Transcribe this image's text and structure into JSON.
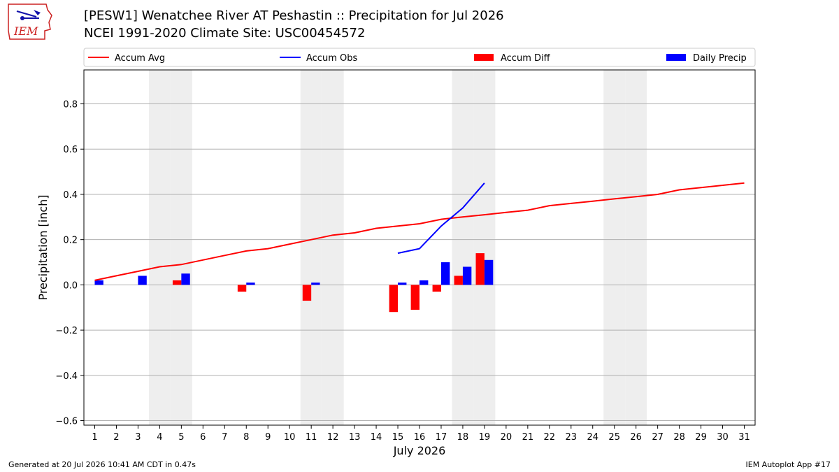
{
  "header": {
    "title_line1": "[PESW1] Wenatchee River  AT Peshastin :: Precipitation for Jul 2026",
    "title_line2": "NCEI 1991-2020 Climate Site: USC00454572",
    "logo_text": "IEM"
  },
  "footer": {
    "generated": "Generated at 20 Jul 2026 10:41 AM CDT in 0.47s",
    "app": "IEM Autoplot App #17"
  },
  "colors": {
    "avg": "#ff0000",
    "obs": "#0000ff",
    "diff": "#ff0000",
    "daily": "#0000ff",
    "weekend": "#eeeeee",
    "grid": "#b0b0b0"
  },
  "chart_data": {
    "type": "bar",
    "xlabel": "July 2026",
    "ylabel": "Precipitation [inch]",
    "xlim": [
      0.5,
      31.5
    ],
    "ylim": [
      -0.62,
      0.95
    ],
    "yticks": [
      -0.6,
      -0.4,
      -0.2,
      0.0,
      0.2,
      0.4,
      0.6,
      0.8
    ],
    "ytick_labels": [
      "−0.6",
      "−0.4",
      "−0.2",
      "0.0",
      "0.2",
      "0.4",
      "0.6",
      "0.8"
    ],
    "days": [
      1,
      2,
      3,
      4,
      5,
      6,
      7,
      8,
      9,
      10,
      11,
      12,
      13,
      14,
      15,
      16,
      17,
      18,
      19,
      20,
      21,
      22,
      23,
      24,
      25,
      26,
      27,
      28,
      29,
      30,
      31
    ],
    "grid": "horizontal",
    "legend_placement": "top",
    "weekend_days": [
      4,
      5,
      11,
      12,
      18,
      19,
      25,
      26
    ],
    "series": [
      {
        "name": "Accum Avg",
        "kind": "line",
        "x": [
          1,
          2,
          3,
          4,
          5,
          6,
          7,
          8,
          9,
          10,
          11,
          12,
          13,
          14,
          15,
          16,
          17,
          18,
          19,
          20,
          21,
          22,
          23,
          24,
          25,
          26,
          27,
          28,
          29,
          30,
          31
        ],
        "values": [
          0.02,
          0.04,
          0.06,
          0.08,
          0.09,
          0.11,
          0.13,
          0.15,
          0.16,
          0.18,
          0.2,
          0.22,
          0.23,
          0.25,
          0.26,
          0.27,
          0.29,
          0.3,
          0.31,
          0.32,
          0.33,
          0.35,
          0.36,
          0.37,
          0.38,
          0.39,
          0.4,
          0.42,
          0.43,
          0.44,
          0.45
        ]
      },
      {
        "name": "Accum Obs",
        "kind": "line",
        "x": [
          15,
          16,
          17,
          18,
          19
        ],
        "values": [
          0.14,
          0.16,
          0.26,
          0.34,
          0.45
        ]
      },
      {
        "name": "Accum Diff",
        "kind": "bar",
        "x": [
          5,
          8,
          11,
          15,
          16,
          17,
          18,
          19
        ],
        "values": [
          0.02,
          -0.03,
          -0.07,
          -0.12,
          -0.11,
          -0.03,
          0.04,
          0.14
        ]
      },
      {
        "name": "Daily Precip",
        "kind": "bar",
        "x": [
          1,
          3,
          5,
          8,
          11,
          15,
          16,
          17,
          18,
          19
        ],
        "values": [
          0.02,
          0.04,
          0.05,
          0.01,
          0.01,
          0.01,
          0.02,
          0.1,
          0.08,
          0.11
        ]
      }
    ]
  }
}
